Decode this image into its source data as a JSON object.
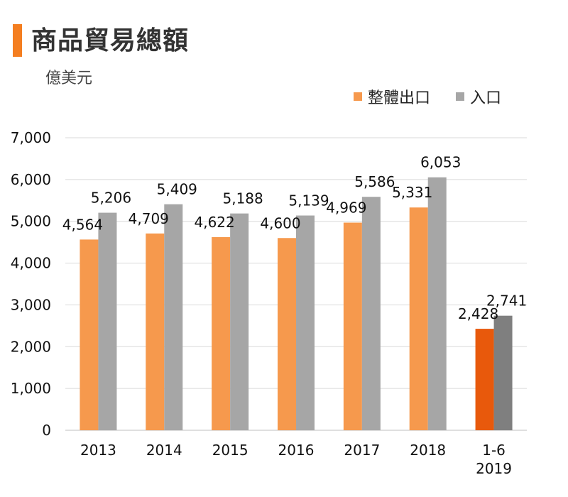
{
  "header": {
    "title": "商品貿易總額",
    "unit": "億美元"
  },
  "colors": {
    "accent": "#f47e20",
    "export": "#f6994d",
    "import": "#a6a6a6",
    "export_highlight": "#e8590c",
    "import_highlight": "#7f7f7f",
    "grid": "#d9d9d9"
  },
  "legend": {
    "items": [
      {
        "label": "整體出口",
        "color_key": "export"
      },
      {
        "label": "入口",
        "color_key": "import"
      }
    ]
  },
  "chart_data": {
    "type": "bar",
    "title": "商品貿易總額",
    "ylabel": "億美元",
    "xlabel": "",
    "ylim": [
      0,
      7000
    ],
    "yticks": [
      "0",
      "1,000",
      "2,000",
      "3,000",
      "4,000",
      "5,000",
      "6,000",
      "7,000"
    ],
    "grid": true,
    "legend_position": "top-right",
    "categories": [
      {
        "lines": [
          "2013"
        ]
      },
      {
        "lines": [
          "2014"
        ]
      },
      {
        "lines": [
          "2015"
        ]
      },
      {
        "lines": [
          "2016"
        ]
      },
      {
        "lines": [
          "2017"
        ]
      },
      {
        "lines": [
          "2018"
        ]
      },
      {
        "lines": [
          "1-6",
          "2019"
        ]
      }
    ],
    "series": [
      {
        "name": "整體出口",
        "values": [
          4564,
          4709,
          4622,
          4600,
          4969,
          5331,
          2428
        ],
        "labels": [
          "4,564",
          "4,709",
          "4,622",
          "4,600",
          "4,969",
          "5,331",
          "2,428"
        ]
      },
      {
        "name": "入口",
        "values": [
          5206,
          5409,
          5188,
          5139,
          5586,
          6053,
          2741
        ],
        "labels": [
          "5,206",
          "5,409",
          "5,188",
          "5,139",
          "5,586",
          "6,053",
          "2,741"
        ]
      }
    ],
    "highlight_index": 6
  }
}
